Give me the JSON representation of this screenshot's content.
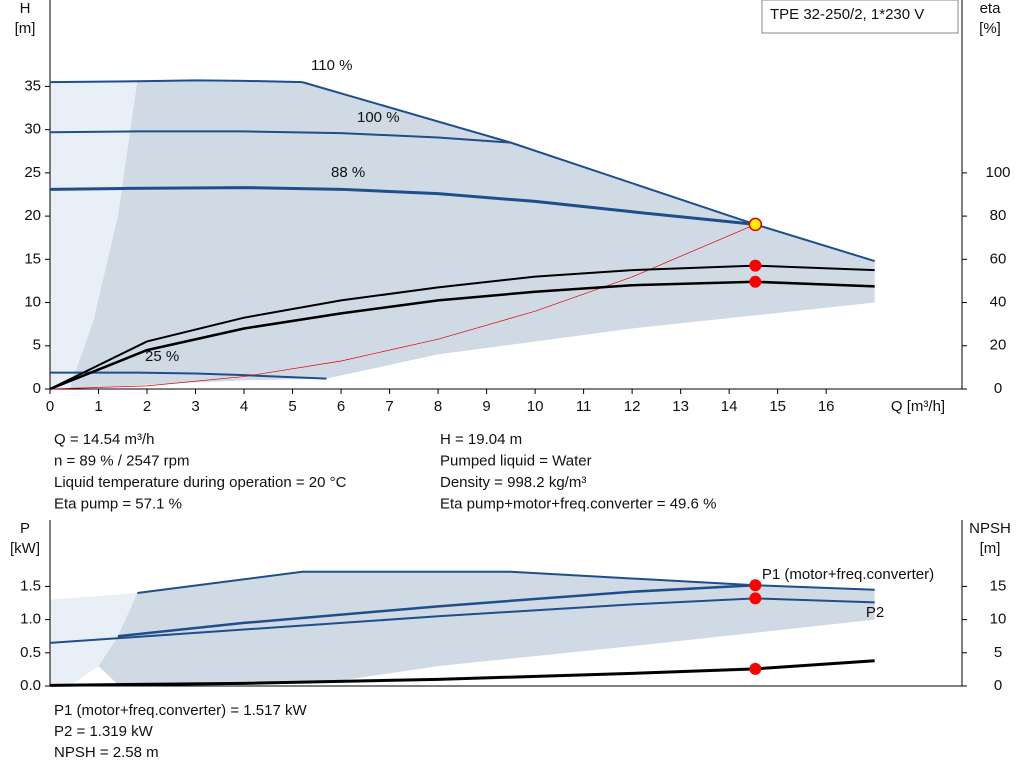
{
  "model_box": "TPE 32-250/2, 1*230 V",
  "operating_info": {
    "left": [
      "Q = 14.54 m³/h",
      "n = 89 % / 2547 rpm",
      "Liquid temperature during operation = 20 °C",
      "Eta pump = 57.1 %"
    ],
    "right": [
      "H = 19.04 m",
      "Pumped liquid = Water",
      "Density = 998.2 kg/m³",
      "Eta pump+motor+freq.converter = 49.6 %"
    ]
  },
  "power_info": [
    "P1 (motor+freq.converter) = 1.517 kW",
    "P2 = 1.319 kW",
    "NPSH = 2.58 m"
  ],
  "chart_data": [
    {
      "type": "line",
      "ylabel": "H",
      "yunit": "[m]",
      "y2label": "eta",
      "y2unit": "[%]",
      "xlabel": "Q [m³/h]",
      "xlim": [
        0,
        18.8
      ],
      "ylim": [
        0,
        45
      ],
      "y2lim": [
        0,
        180
      ],
      "xticks": [
        0,
        1,
        2,
        3,
        4,
        5,
        6,
        7,
        8,
        9,
        10,
        11,
        12,
        13,
        14,
        15,
        16
      ],
      "yticks": [
        0,
        5,
        10,
        15,
        20,
        25,
        30,
        35
      ],
      "y2ticks": [
        0,
        20,
        40,
        60,
        80,
        100
      ],
      "operating_x": 14.54,
      "regions": [
        {
          "color": "#e9eff6",
          "x": [
            0,
            1.8,
            1.4,
            0.9,
            0.4,
            0
          ],
          "y": [
            35.5,
            35.6,
            20,
            8,
            0,
            0
          ]
        },
        {
          "color": "#cfdae5",
          "x": [
            1.8,
            5.2,
            9.5,
            14.54,
            17,
            17,
            12,
            8,
            5.7,
            4,
            2,
            1,
            0.4,
            0.9,
            1.4
          ],
          "y": [
            35.6,
            35.5,
            28.5,
            19.04,
            14.8,
            10,
            7,
            4,
            1.2,
            1.0,
            0.5,
            0.2,
            0,
            8,
            20
          ]
        }
      ],
      "series": [
        {
          "name": "110 %",
          "color": "#1f4e8c",
          "x": [
            0,
            1.8,
            3,
            4,
            5.2
          ],
          "values": [
            35.5,
            35.6,
            35.7,
            35.65,
            35.5
          ]
        },
        {
          "color": "#1f4e8c",
          "x": [
            5.2,
            9.5,
            14.54,
            17
          ],
          "values": [
            35.5,
            28.5,
            19.04,
            14.8
          ],
          "marker_color": "#ffee00"
        },
        {
          "name": "100 %",
          "color": "#1f4e8c",
          "x": [
            0,
            1.8,
            4,
            6,
            8,
            9.5
          ],
          "values": [
            29.7,
            29.8,
            29.8,
            29.6,
            29.1,
            28.5
          ]
        },
        {
          "name": "88 %",
          "color": "#1f4e8c",
          "x": [
            0,
            1.5,
            4,
            6,
            8,
            10,
            12,
            14.54
          ],
          "values": [
            23.1,
            23.2,
            23.3,
            23.1,
            22.6,
            21.7,
            20.5,
            19.04
          ]
        },
        {
          "name": "25 %",
          "color": "#1f4e8c",
          "x": [
            0,
            1.8,
            3,
            4,
            5.7
          ],
          "values": [
            1.9,
            1.9,
            1.8,
            1.6,
            1.2
          ]
        },
        {
          "color": "#e00000",
          "x": [
            0,
            2,
            4,
            6,
            8,
            10,
            12,
            14.54
          ],
          "values": [
            0,
            0.36,
            1.44,
            3.24,
            5.76,
            9,
            12.96,
            19.04
          ]
        },
        {
          "color": "#000000",
          "axis": "y2",
          "x": [
            0,
            2,
            4,
            6,
            8,
            10,
            12,
            14.54,
            17
          ],
          "values": [
            0,
            22,
            33,
            41,
            47,
            52,
            55,
            57.1,
            55
          ],
          "marker_color": "#ff0000"
        },
        {
          "color": "#000000",
          "axis": "y2",
          "x": [
            0,
            2,
            4,
            6,
            8,
            10,
            12,
            14.54,
            17
          ],
          "values": [
            0,
            18,
            28,
            35,
            41,
            45,
            48,
            49.6,
            47.5
          ],
          "marker_color": "#ff0000"
        }
      ]
    },
    {
      "type": "line",
      "ylabel": "P",
      "yunit": "[kW]",
      "y2label": "NPSH",
      "y2unit": "[m]",
      "xlim": [
        0,
        18.8
      ],
      "ylim": [
        0,
        2.5
      ],
      "y2lim": [
        0,
        25
      ],
      "yticks": [
        {
          "value": 0,
          "label": "0.0"
        },
        0.5,
        {
          "value": 1,
          "label": "1.0"
        },
        1.5
      ],
      "y2ticks": [
        0,
        5,
        10,
        15
      ],
      "operating_x": 14.54,
      "regions": [
        {
          "color": "#e9eff6",
          "x": [
            0,
            1.8,
            1.4,
            1.0,
            0.4,
            0
          ],
          "y": [
            1.3,
            1.4,
            0.75,
            0.3,
            0,
            0
          ]
        },
        {
          "color": "#cfdae5",
          "x": [
            1.8,
            5.2,
            9.5,
            14.54,
            17,
            17,
            12,
            8,
            5.7,
            1.4,
            1.0,
            1.4
          ],
          "y": [
            1.4,
            1.72,
            1.72,
            1.517,
            1.45,
            1.0,
            0.6,
            0.3,
            0.05,
            0.02,
            0.3,
            0.75
          ]
        }
      ],
      "series": [
        {
          "name": "P1 (motor+freq.converter)",
          "color": "#1f4e8c",
          "x": [
            1.8,
            5.2,
            9.5,
            14.54,
            17
          ],
          "values": [
            1.4,
            1.72,
            1.72,
            1.517,
            1.45
          ],
          "marker_color": "#ff0000"
        },
        {
          "color": "#1f4e8c",
          "x": [
            1.4,
            4,
            8,
            12,
            14.54
          ],
          "values": [
            0.75,
            0.95,
            1.2,
            1.42,
            1.517
          ]
        },
        {
          "name": "P2",
          "color": "#1f4e8c",
          "x": [
            0,
            4,
            8,
            12,
            14.54,
            17
          ],
          "values": [
            0.65,
            0.85,
            1.05,
            1.23,
            1.319,
            1.26
          ],
          "marker_color": "#ff0000"
        },
        {
          "color": "#000000",
          "axis": "y2",
          "x": [
            0,
            4,
            8,
            12,
            14.54,
            17
          ],
          "values": [
            0.1,
            0.4,
            1,
            1.9,
            2.58,
            3.8
          ],
          "marker_color": "#ff0000"
        }
      ]
    }
  ]
}
